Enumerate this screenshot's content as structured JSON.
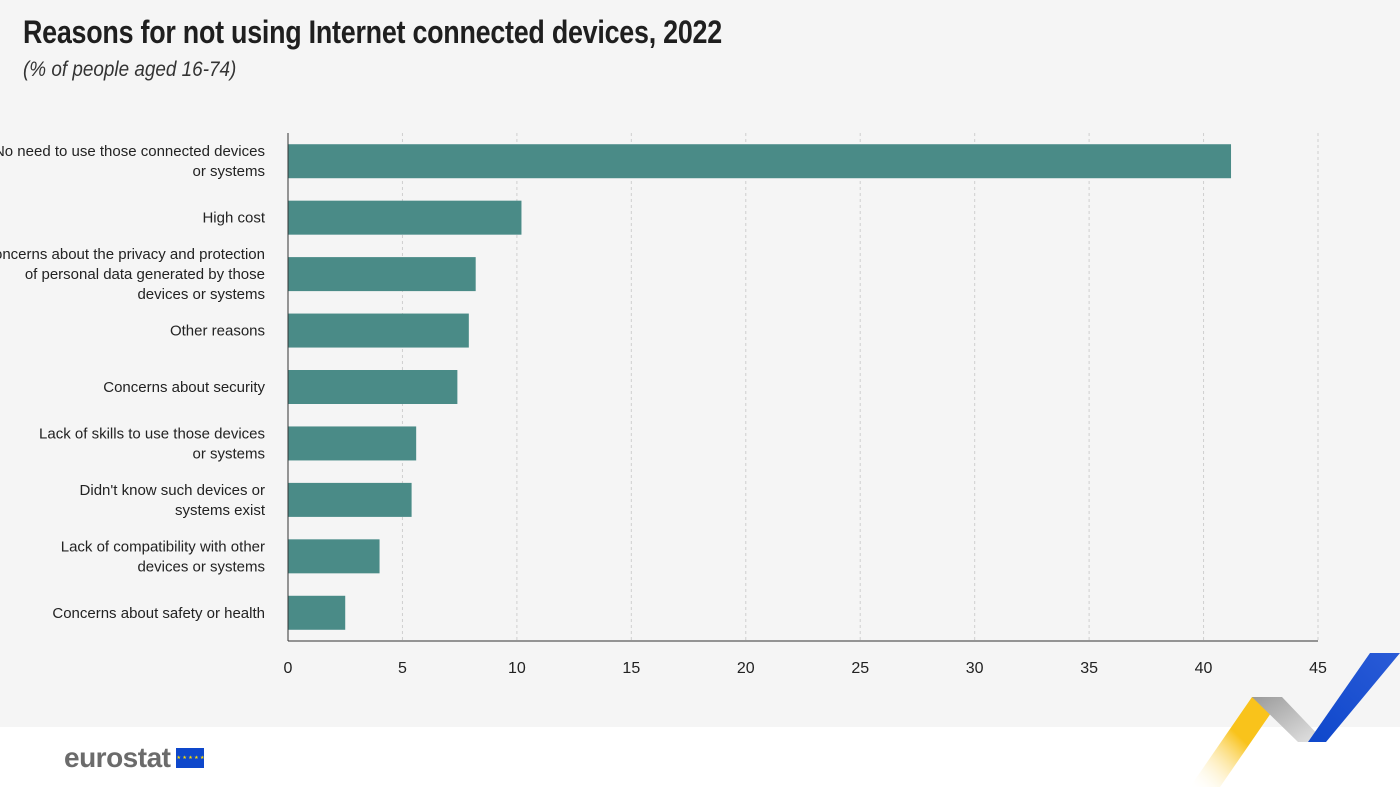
{
  "header": {
    "title": "Reasons for not using Internet connected devices, 2022",
    "subtitle": "(% of people aged 16-74)"
  },
  "footer": {
    "logo_text": "eurostat",
    "flag_icon": "eu-flag-icon"
  },
  "colors": {
    "bar": "#4a8b87",
    "background": "#f5f5f5",
    "grid": "#cfcfcf",
    "axis": "#333333"
  },
  "chart_data": {
    "type": "bar",
    "orientation": "horizontal",
    "title": "Reasons for not using Internet connected devices, 2022",
    "subtitle": "(% of people aged 16-74)",
    "xlabel": "",
    "ylabel": "",
    "xlim": [
      0,
      45
    ],
    "ticks": [
      0,
      5,
      10,
      15,
      20,
      25,
      30,
      35,
      40,
      45
    ],
    "grid": true,
    "categories": [
      [
        "No need to use those connected devices",
        "or systems"
      ],
      [
        "High cost"
      ],
      [
        "Concerns about the privacy and protection",
        "of personal data generated by those",
        "devices or systems"
      ],
      [
        "Other reasons"
      ],
      [
        "Concerns about security"
      ],
      [
        "Lack of skills to use those devices",
        "or systems"
      ],
      [
        "Didn't know such devices or",
        "systems exist"
      ],
      [
        "Lack of compatibility with other",
        "devices or systems"
      ],
      [
        "Concerns about safety or health"
      ]
    ],
    "values": [
      41.2,
      10.2,
      8.2,
      7.9,
      7.4,
      5.6,
      5.4,
      4.0,
      2.5
    ]
  }
}
